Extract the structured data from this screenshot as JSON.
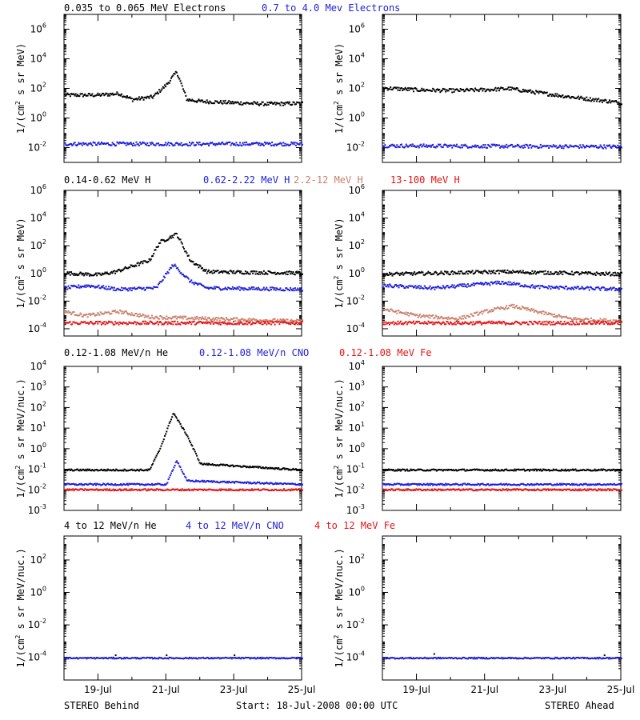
{
  "footer": {
    "left": "STEREO Behind",
    "center": "Start: 18-Jul-2008 00:00 UTC",
    "right": "STEREO Ahead"
  },
  "colors": {
    "black": "#000000",
    "blue": "#1e1edc",
    "tan": "#c8826e",
    "red": "#e61414"
  },
  "x_ticks": [
    "19-Jul",
    "21-Jul",
    "23-Jul",
    "25-Jul"
  ],
  "chart_data": [
    {
      "type": "scatter",
      "row": "electrons",
      "legend": [
        {
          "label": "0.035 to 0.065 MeV Electrons",
          "color": "#000000"
        },
        {
          "label": "0.7 to 4.0 Mev Electrons",
          "color": "#1e1edc"
        }
      ],
      "ylabel": "1/(cm² s sr MeV)",
      "yscale": "log",
      "ylim": [
        0.001,
        10000000
      ],
      "yticks": [
        {
          "base": "10",
          "exp": "-2"
        },
        {
          "base": "10",
          "exp": "0"
        },
        {
          "base": "10",
          "exp": "2"
        },
        {
          "base": "10",
          "exp": "4"
        },
        {
          "base": "10",
          "exp": "6"
        }
      ],
      "xlim": [
        "2008-07-18",
        "2008-07-25"
      ],
      "panels": [
        {
          "name": "STEREO Behind",
          "series": [
            {
              "color": "#000000",
              "points": [
                [
                  "2008-07-18",
                  40
                ],
                [
                  "2008-07-19",
                  40
                ],
                [
                  "2008-07-19.6",
                  50
                ],
                [
                  "2008-07-20",
                  20
                ],
                [
                  "2008-07-20.6",
                  30
                ],
                [
                  "2008-07-21",
                  200
                ],
                [
                  "2008-07-21.3",
                  1500
                ],
                [
                  "2008-07-21.6",
                  20
                ],
                [
                  "2008-07-22",
                  15
                ],
                [
                  "2008-07-23",
                  12
                ],
                [
                  "2008-07-24",
                  10
                ],
                [
                  "2008-07-25",
                  11
                ]
              ]
            },
            {
              "color": "#1e1edc",
              "points": [
                [
                  "2008-07-18",
                  0.02
                ],
                [
                  "2008-07-25",
                  0.02
                ]
              ]
            }
          ]
        },
        {
          "name": "STEREO Ahead",
          "series": [
            {
              "color": "#000000",
              "points": [
                [
                  "2008-07-18",
                  120
                ],
                [
                  "2008-07-19",
                  90
                ],
                [
                  "2008-07-20",
                  80
                ],
                [
                  "2008-07-21",
                  90
                ],
                [
                  "2008-07-21.7",
                  110
                ],
                [
                  "2008-07-22.5",
                  60
                ],
                [
                  "2008-07-23.5",
                  30
                ],
                [
                  "2008-07-25",
                  12
                ]
              ]
            },
            {
              "color": "#1e1edc",
              "points": [
                [
                  "2008-07-18",
                  0.015
                ],
                [
                  "2008-07-25",
                  0.013
                ]
              ]
            }
          ]
        }
      ]
    },
    {
      "type": "scatter",
      "row": "protons",
      "legend": [
        {
          "label": "0.14-0.62 MeV H",
          "color": "#000000"
        },
        {
          "label": "0.62-2.22 MeV H",
          "color": "#1e1edc"
        },
        {
          "label": "2.2-12 MeV H",
          "color": "#c8826e"
        },
        {
          "label": "13-100 MeV H",
          "color": "#e61414"
        }
      ],
      "ylabel": "1/(cm² s sr MeV)",
      "yscale": "log",
      "ylim": [
        3e-05,
        1000000
      ],
      "yticks": [
        {
          "base": "10",
          "exp": "-4"
        },
        {
          "base": "10",
          "exp": "-2"
        },
        {
          "base": "10",
          "exp": "0"
        },
        {
          "base": "10",
          "exp": "2"
        },
        {
          "base": "10",
          "exp": "4"
        },
        {
          "base": "10",
          "exp": "6"
        }
      ],
      "xlim": [
        "2008-07-18",
        "2008-07-25"
      ],
      "panels": [
        {
          "name": "STEREO Behind",
          "series": [
            {
              "color": "#000000",
              "points": [
                [
                  "2008-07-18",
                  1.2
                ],
                [
                  "2008-07-19",
                  0.9
                ],
                [
                  "2008-07-19.5",
                  1.5
                ],
                [
                  "2008-07-20.5",
                  10
                ],
                [
                  "2008-07-20.8",
                  200
                ],
                [
                  "2008-07-21.3",
                  800
                ],
                [
                  "2008-07-21.7",
                  10
                ],
                [
                  "2008-07-22.2",
                  1.5
                ],
                [
                  "2008-07-25",
                  1.2
                ]
              ]
            },
            {
              "color": "#1e1edc",
              "points": [
                [
                  "2008-07-18",
                  0.1
                ],
                [
                  "2008-07-18.7",
                  0.15
                ],
                [
                  "2008-07-19.6",
                  0.08
                ],
                [
                  "2008-07-20.7",
                  0.1
                ],
                [
                  "2008-07-21.2",
                  5
                ],
                [
                  "2008-07-21.7",
                  0.3
                ],
                [
                  "2008-07-22.2",
                  0.1
                ],
                [
                  "2008-07-25",
                  0.08
                ]
              ]
            },
            {
              "color": "#c8826e",
              "points": [
                [
                  "2008-07-18",
                  0.002
                ],
                [
                  "2008-07-18.6",
                  0.001
                ],
                [
                  "2008-07-19.6",
                  0.002
                ],
                [
                  "2008-07-20.5",
                  0.0008
                ],
                [
                  "2008-07-25",
                  0.0004
                ]
              ]
            },
            {
              "color": "#e61414",
              "points": [
                [
                  "2008-07-18",
                  0.0003
                ],
                [
                  "2008-07-25",
                  0.0003
                ]
              ]
            }
          ]
        },
        {
          "name": "STEREO Ahead",
          "series": [
            {
              "color": "#000000",
              "points": [
                [
                  "2008-07-18",
                  1.0
                ],
                [
                  "2008-07-21.5",
                  1.5
                ],
                [
                  "2008-07-25",
                  1.0
                ]
              ]
            },
            {
              "color": "#1e1edc",
              "points": [
                [
                  "2008-07-18",
                  0.15
                ],
                [
                  "2008-07-19.5",
                  0.1
                ],
                [
                  "2008-07-21.5",
                  0.25
                ],
                [
                  "2008-07-22.5",
                  0.12
                ],
                [
                  "2008-07-25",
                  0.08
                ]
              ]
            },
            {
              "color": "#c8826e",
              "points": [
                [
                  "2008-07-18",
                  0.003
                ],
                [
                  "2008-07-19",
                  0.001
                ],
                [
                  "2008-07-20.2",
                  0.0006
                ],
                [
                  "2008-07-21",
                  0.002
                ],
                [
                  "2008-07-21.8",
                  0.005
                ],
                [
                  "2008-07-22.5",
                  0.002
                ],
                [
                  "2008-07-23.5",
                  0.0006
                ],
                [
                  "2008-07-25",
                  0.0004
                ]
              ]
            },
            {
              "color": "#e61414",
              "points": [
                [
                  "2008-07-18",
                  0.0003
                ],
                [
                  "2008-07-25",
                  0.0003
                ]
              ]
            }
          ]
        }
      ]
    },
    {
      "type": "scatter",
      "row": "heavy_low",
      "legend": [
        {
          "label": "0.12-1.08 MeV/n He",
          "color": "#000000"
        },
        {
          "label": "0.12-1.08 MeV/n CNO",
          "color": "#1e1edc"
        },
        {
          "label": "0.12-1.08 MeV Fe",
          "color": "#e61414"
        }
      ],
      "ylabel": "1/(cm² s sr MeV/nuc.)",
      "yscale": "log",
      "ylim": [
        0.001,
        10000
      ],
      "yticks": [
        {
          "base": "10",
          "exp": "-3"
        },
        {
          "base": "10",
          "exp": "-2"
        },
        {
          "base": "10",
          "exp": "-1"
        },
        {
          "base": "10",
          "exp": "0"
        },
        {
          "base": "10",
          "exp": "1"
        },
        {
          "base": "10",
          "exp": "2"
        },
        {
          "base": "10",
          "exp": "3"
        },
        {
          "base": "10",
          "exp": "4"
        }
      ],
      "xlim": [
        "2008-07-18",
        "2008-07-25"
      ],
      "panels": [
        {
          "name": "STEREO Behind",
          "series": [
            {
              "color": "#000000",
              "points": [
                [
                  "2008-07-18",
                  0.1
                ],
                [
                  "2008-07-20.5",
                  0.1
                ],
                [
                  "2008-07-20.8",
                  1
                ],
                [
                  "2008-07-21.2",
                  60
                ],
                [
                  "2008-07-21.6",
                  5
                ],
                [
                  "2008-07-22",
                  0.2
                ],
                [
                  "2008-07-25",
                  0.1
                ]
              ]
            },
            {
              "color": "#1e1edc",
              "points": [
                [
                  "2008-07-18",
                  0.02
                ],
                [
                  "2008-07-21",
                  0.02
                ],
                [
                  "2008-07-21.3",
                  0.3
                ],
                [
                  "2008-07-21.6",
                  0.03
                ],
                [
                  "2008-07-25",
                  0.02
                ]
              ]
            },
            {
              "color": "#e61414",
              "points": [
                [
                  "2008-07-18",
                  0.011
                ],
                [
                  "2008-07-25",
                  0.011
                ]
              ]
            }
          ]
        },
        {
          "name": "STEREO Ahead",
          "series": [
            {
              "color": "#000000",
              "points": [
                [
                  "2008-07-18",
                  0.1
                ],
                [
                  "2008-07-25",
                  0.1
                ]
              ]
            },
            {
              "color": "#1e1edc",
              "points": [
                [
                  "2008-07-18",
                  0.02
                ],
                [
                  "2008-07-25",
                  0.02
                ]
              ]
            },
            {
              "color": "#e61414",
              "points": [
                [
                  "2008-07-18",
                  0.011
                ],
                [
                  "2008-07-25",
                  0.011
                ]
              ]
            }
          ]
        }
      ]
    },
    {
      "type": "scatter",
      "row": "heavy_high",
      "legend": [
        {
          "label": "4 to 12 MeV/n He",
          "color": "#000000"
        },
        {
          "label": "4 to 12 MeV/n CNO",
          "color": "#1e1edc"
        },
        {
          "label": "4 to 12 MeV Fe",
          "color": "#e61414"
        }
      ],
      "ylabel": "1/(cm² s sr MeV/nuc.)",
      "yscale": "log",
      "ylim": [
        4e-06,
        3000
      ],
      "yticks": [
        {
          "base": "10",
          "exp": "-4"
        },
        {
          "base": "10",
          "exp": "-2"
        },
        {
          "base": "10",
          "exp": "0"
        },
        {
          "base": "10",
          "exp": "2"
        }
      ],
      "xlim": [
        "2008-07-18",
        "2008-07-25"
      ],
      "panels": [
        {
          "name": "STEREO Behind",
          "series": [
            {
              "color": "#1e1edc",
              "points": [
                [
                  "2008-07-18",
                  0.0001
                ],
                [
                  "2008-07-25",
                  0.0001
                ]
              ]
            },
            {
              "color": "#000000",
              "points": [
                [
                  "2008-07-19.5",
                  0.00015
                ],
                [
                  "2008-07-21",
                  0.00015
                ],
                [
                  "2008-07-23",
                  0.00015
                ]
              ]
            }
          ]
        },
        {
          "name": "STEREO Ahead",
          "series": [
            {
              "color": "#1e1edc",
              "points": [
                [
                  "2008-07-18",
                  0.0001
                ],
                [
                  "2008-07-25",
                  0.0001
                ]
              ]
            },
            {
              "color": "#000000",
              "points": [
                [
                  "2008-07-19.5",
                  0.00018
                ],
                [
                  "2008-07-24.5",
                  0.00015
                ]
              ]
            }
          ]
        }
      ]
    }
  ]
}
